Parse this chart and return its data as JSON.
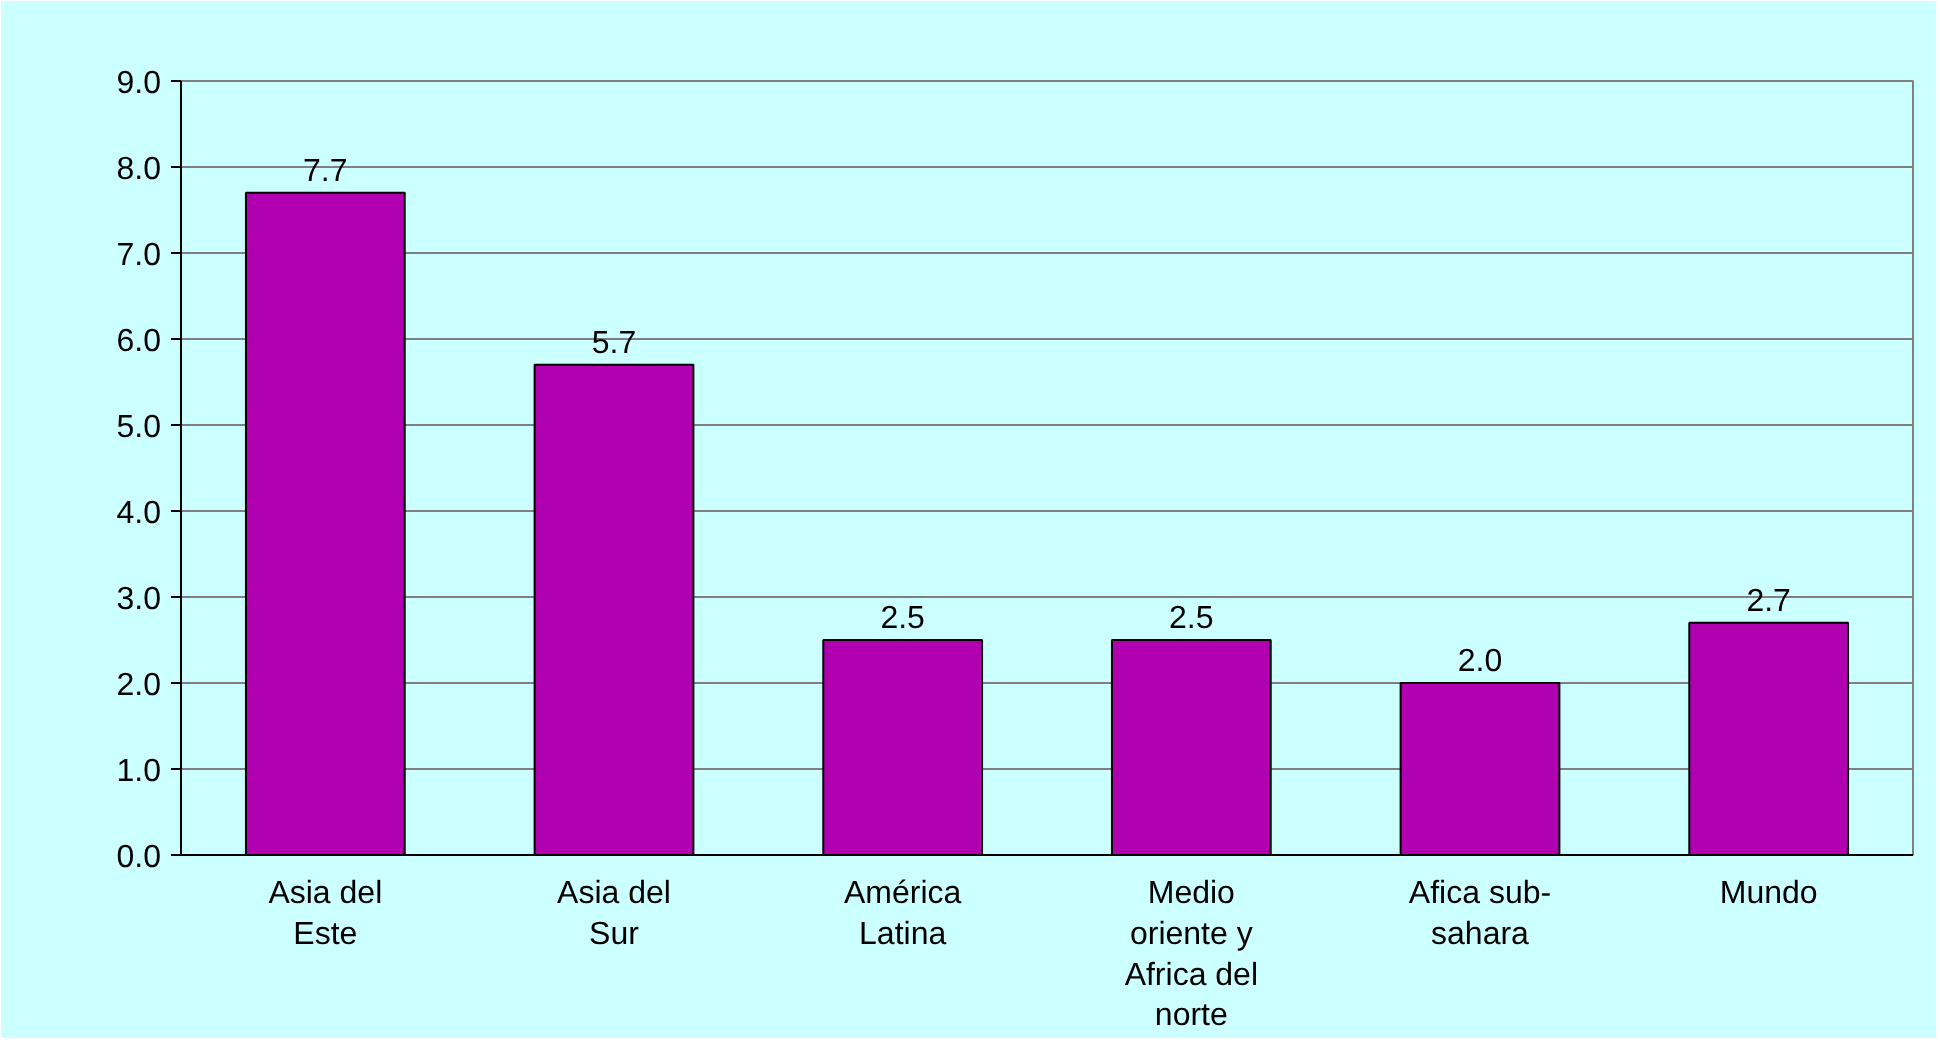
{
  "chart_data": {
    "type": "bar",
    "categories": [
      "Asia del\nEste",
      "Asia del\nSur",
      "América\nLatina",
      "Medio\noriente y\nAfrica del\nnorte",
      "Afica sub-\nsahara",
      "Mundo"
    ],
    "values": [
      7.7,
      5.7,
      2.5,
      2.5,
      2.0,
      2.7
    ],
    "color": "#b000b0",
    "ylim": [
      0,
      9
    ],
    "yticks": [
      {
        "value": 0,
        "label": "0.0"
      },
      {
        "value": 1,
        "label": "1.0"
      },
      {
        "value": 2,
        "label": "2.0"
      },
      {
        "value": 3,
        "label": "3.0"
      },
      {
        "value": 4,
        "label": "4.0"
      },
      {
        "value": 5,
        "label": "5.0"
      },
      {
        "value": 6,
        "label": "6.0"
      },
      {
        "value": 7,
        "label": "7.0"
      },
      {
        "value": 8,
        "label": "8.0"
      },
      {
        "value": 9,
        "label": "9.0"
      }
    ],
    "value_labels": [
      "7.7",
      "5.7",
      "2.5",
      "2.5",
      "2.0",
      "2.7"
    ],
    "grid": "y"
  }
}
